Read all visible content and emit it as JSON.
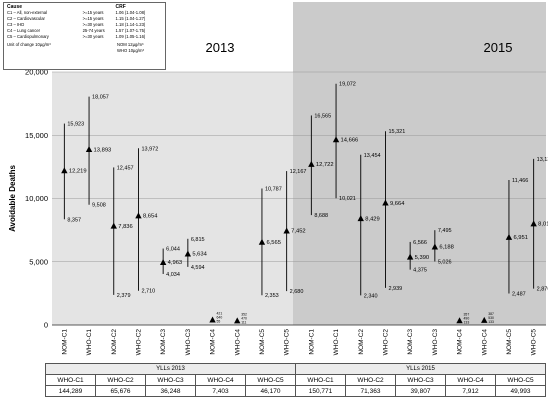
{
  "legend": {
    "header": {
      "cause": "Cause",
      "age": "",
      "crf": "CRF"
    },
    "rows": [
      {
        "cause": "C1 – All, non-external",
        "age": ">=15 years",
        "crf": "1.06 (1.04-1.08)"
      },
      {
        "cause": "C2 – Cardiovascular",
        "age": ">=15 years",
        "crf": "1.15 (1.04-1.27)"
      },
      {
        "cause": "C3 – IHD",
        "age": ">=30 years",
        "crf": "1.18 (1.14-1.23)"
      },
      {
        "cause": "C4 – Lung cancer",
        "age": "25-74 years",
        "crf": "1.57 (1.07-1.75)"
      },
      {
        "cause": "C5 – Cardiopulmonary",
        "age": ">=30 years",
        "crf": "1.09 (1.05-1.16)"
      }
    ],
    "footer_label": "Unit of change 10µg/m³",
    "footer_nom": "NOM 12µg/m³",
    "footer_who": "WHO 10µg/m³"
  },
  "colors": {
    "panel2013": "#e4e4e4",
    "panel2015": "#cbcbcb",
    "bar": "#000000",
    "grid": "#9a9a9a"
  },
  "chart_data": {
    "type": "scatter",
    "panels": [
      "2013",
      "2015"
    ],
    "ylabel": "Avoidable Deaths",
    "ylim": [
      0,
      20000
    ],
    "yticks": [
      "0",
      "5,000",
      "10,000",
      "15,000",
      "20,000"
    ],
    "ytick_values": [
      0,
      5000,
      10000,
      15000,
      20000
    ],
    "categories": [
      "NOM-C1",
      "WHO-C1",
      "NOM-C2",
      "WHO-C2",
      "NOM-C3",
      "WHO-C3",
      "NOM-C4",
      "WHO-C4",
      "NOM-C5",
      "WHO-C5",
      "NOM-C1",
      "WHO-C1",
      "NOM-C2",
      "WHO-C2",
      "NOM-C3",
      "WHO-C3",
      "NOM-C4",
      "WHO-C4",
      "NOM-C5",
      "WHO-C5"
    ],
    "series": [
      {
        "values": [
          12219,
          13893,
          7836,
          8654,
          4963,
          5634,
          421,
          352,
          6565,
          7452,
          12722,
          14666,
          8429,
          9664,
          5390,
          6188,
          357,
          387,
          6951,
          8014
        ]
      }
    ],
    "upper": [
      15923,
      18057,
      12457,
      13972,
      6044,
      6815,
      null,
      null,
      10787,
      12167,
      16565,
      19072,
      13454,
      15321,
      6566,
      7495,
      null,
      null,
      11466,
      13136
    ],
    "lower": [
      8357,
      9508,
      2379,
      2710,
      4034,
      4594,
      null,
      null,
      2353,
      2680,
      8688,
      10021,
      2340,
      2939,
      4375,
      5026,
      null,
      null,
      2487,
      2876
    ],
    "value_labels": [
      "12,219",
      "13,893",
      "7,836",
      "8,654",
      "4,963",
      "5,634",
      "421",
      "352",
      "6,565",
      "7,452",
      "12,722",
      "14,666",
      "8,429",
      "9,664",
      "5,390",
      "6,188",
      "357",
      "387",
      "6,951",
      "8,014"
    ],
    "upper_labels": [
      "15,923",
      "18,057",
      "12,457",
      "13,972",
      "6,044",
      "6,815",
      "",
      "",
      "10,787",
      "12,167",
      "16,565",
      "19,072",
      "13,454",
      "15,321",
      "6,566",
      "7,495",
      "",
      "",
      "11,466",
      "13,136"
    ],
    "lower_labels": [
      "8,357",
      "9,508",
      "2,379",
      "2,710",
      "4,034",
      "4,594",
      "",
      "",
      "2,353",
      "2,680",
      "8,688",
      "10,021",
      "2,340",
      "2,939",
      "4,375",
      "5,026",
      "",
      "",
      "2,487",
      "2,876"
    ],
    "small_labels": [
      [],
      [],
      [],
      [],
      [],
      [],
      [
        "421",
        "640",
        "55"
      ],
      [
        "352",
        "470",
        "111"
      ],
      [],
      [],
      [],
      [],
      [],
      [],
      [],
      [],
      [
        "357",
        "490",
        "133"
      ],
      [
        "387",
        "530",
        "133"
      ],
      [],
      []
    ]
  },
  "yll_table": {
    "headers": [
      "YLLs 2013",
      "YLLs 2015"
    ],
    "columns": [
      "WHO-C1",
      "WHO-C2",
      "WHO-C3",
      "WHO-C4",
      "WHO-C5",
      "WHO-C1",
      "WHO-C2",
      "WHO-C3",
      "WHO-C4",
      "WHO-C5"
    ],
    "values": [
      "144,289",
      "65,676",
      "36,248",
      "7,403",
      "46,170",
      "150,771",
      "71,363",
      "39,807",
      "7,912",
      "49,993"
    ]
  }
}
